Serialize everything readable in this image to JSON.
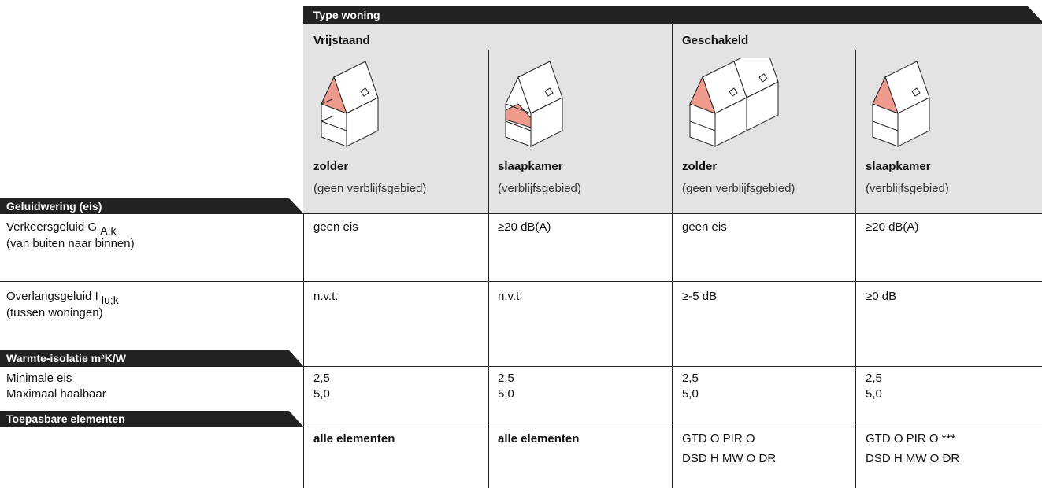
{
  "table": {
    "title": "Type woning",
    "groups": [
      "Vrijstaand",
      "Geschakeld"
    ],
    "columns": [
      {
        "name": "zolder",
        "note": "(geen verblijfsgebied)"
      },
      {
        "name": "slaapkamer",
        "note": "(verblijfsgebied)"
      },
      {
        "name": "zolder",
        "note": "(geen verblijfsgebied)"
      },
      {
        "name": "slaapkamer",
        "note": "(verblijfsgebied)"
      }
    ],
    "sections": [
      {
        "title": "Geluidwering (eis)",
        "rows": [
          {
            "label": "Verkeersgeluid G",
            "subscript": "A;k",
            "label2": "(van buiten naar binnen)",
            "cells": [
              "geen eis",
              "≥20 dB(A)",
              "geen eis",
              "≥20 dB(A)"
            ]
          },
          {
            "label": "Overlangsgeluid I",
            "subscript": "lu;k",
            "label2": "(tussen woningen)",
            "cells": [
              "n.v.t.",
              "n.v.t.",
              "≥-5 dB",
              "≥0 dB"
            ]
          }
        ]
      },
      {
        "title": "Warmte-isolatie m²K/W",
        "rows": [
          {
            "label": "Minimale eis",
            "cells": [
              "2,5",
              "2,5",
              "2,5",
              "2,5"
            ]
          },
          {
            "label": "Maximaal haalbaar",
            "cells": [
              "5,0",
              "5,0",
              "5,0",
              "5,0"
            ]
          }
        ]
      },
      {
        "title": "Toepasbare elementen",
        "rows": [
          {
            "cells": [
              [
                "alle elementen"
              ],
              [
                "alle elementen"
              ],
              [
                "GTD O PIR O",
                "DSD H MW O DR"
              ],
              [
                "GTD O PIR O ***",
                "DSD H MW O DR"
              ]
            ]
          }
        ]
      }
    ]
  }
}
